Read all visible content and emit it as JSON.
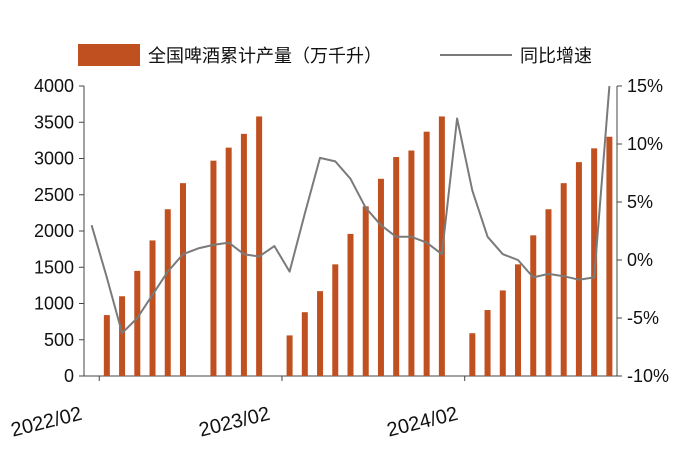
{
  "chart_data": {
    "type": "bar",
    "title": "",
    "xlabel": "",
    "ylabel_left": "",
    "ylabel_right": "",
    "ylim_left": [
      0,
      4000
    ],
    "ylim_right": [
      -10,
      15
    ],
    "yticks_left": [
      "0",
      "500",
      "1000",
      "1500",
      "2000",
      "2500",
      "3000",
      "3500",
      "4000"
    ],
    "yticks_right": [
      "-10%",
      "-5%",
      "0%",
      "5%",
      "10%",
      "15%"
    ],
    "xtick_labels": [
      "2022/02",
      "2023/02",
      "2024/02"
    ],
    "legend_position": "top",
    "grid": false,
    "x": [
      "2022-01",
      "2022-02",
      "2022-03",
      "2022-04",
      "2022-05",
      "2022-06",
      "2022-07",
      "2022-08",
      "2022-09",
      "2022-10",
      "2022-11",
      "2022-12",
      "2023-01",
      "2023-02",
      "2023-03",
      "2023-04",
      "2023-05",
      "2023-06",
      "2023-07",
      "2023-08",
      "2023-09",
      "2023-10",
      "2023-11",
      "2023-12",
      "2024-01",
      "2024-02",
      "2024-03",
      "2024-04",
      "2024-05",
      "2024-06",
      "2024-07",
      "2024-08",
      "2024-09",
      "2024-10",
      "2024-11"
    ],
    "series": [
      {
        "name": "全国啤酒累计产量（万千升）",
        "type": "bar",
        "axis": "left",
        "color": "#C0501F",
        "values": [
          null,
          840,
          1100,
          1450,
          1870,
          2300,
          2660,
          null,
          2970,
          3150,
          3340,
          3580,
          null,
          560,
          880,
          1170,
          1540,
          1960,
          2340,
          2720,
          3020,
          3110,
          3370,
          3580,
          null,
          590,
          910,
          1180,
          1540,
          1940,
          2300,
          2660,
          2950,
          3140,
          3300
        ]
      },
      {
        "name": "同比增速",
        "type": "line",
        "axis": "right",
        "color": "#7A7A7A",
        "values": [
          3.0,
          -1.5,
          -6.3,
          -5.0,
          -3.0,
          -1.0,
          0.5,
          1.0,
          1.3,
          1.5,
          0.5,
          0.3,
          1.2,
          -1.0,
          4.0,
          8.8,
          8.5,
          7.0,
          4.5,
          3.0,
          2.0,
          2.0,
          1.5,
          0.5,
          12.2,
          6.0,
          2.0,
          0.5,
          0,
          -1.5,
          -1.2,
          -1.4,
          -1.7,
          -1.5,
          15.0
        ]
      }
    ]
  }
}
